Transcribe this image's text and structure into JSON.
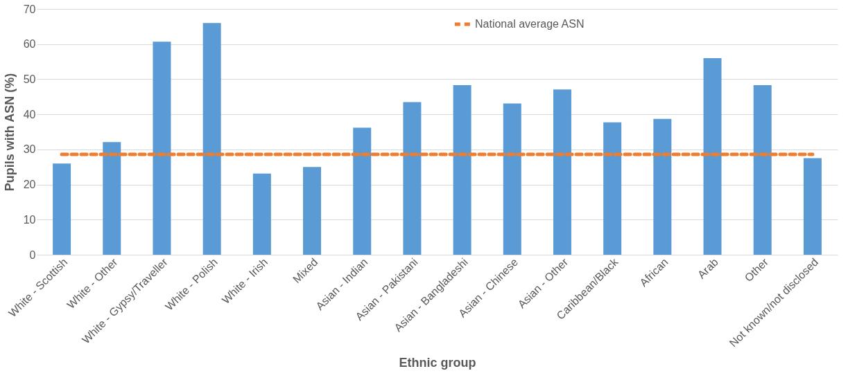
{
  "chart_data": {
    "type": "bar",
    "xlabel": "Ethnic group",
    "ylabel": "Pupils with ASN (%)",
    "categories": [
      "White - Scottish",
      "White - Other",
      "White - Gypsy/Traveller",
      "White - Polish",
      "White - Irish",
      "Mixed",
      "Asian - Indian",
      "Asian - Pakistani",
      "Asian - Bangladeshi",
      "Asian - Chinese",
      "Asian - Other",
      "Caribbean/Black",
      "African",
      "Arab",
      "Other",
      "Not known/not disclosed"
    ],
    "series": [
      {
        "color": "#5b9bd5",
        "values": [
          26,
          32.1,
          60.7,
          66,
          23.1,
          25,
          36.2,
          43.5,
          48.3,
          43.1,
          47.1,
          37.7,
          38.7,
          56,
          48.3,
          27.5
        ]
      },
      {
        "type": "line",
        "name": "National average ASN",
        "color": "#ed7d31",
        "line_style": "dashed",
        "values": [
          28.6,
          28.6,
          28.6,
          28.6,
          28.6,
          28.6,
          28.6,
          28.6,
          28.6,
          28.6,
          28.6,
          28.6,
          28.6,
          28.6,
          28.6,
          28.6
        ]
      }
    ],
    "ylim": [
      0,
      70
    ],
    "yticks": [
      0,
      10,
      20,
      30,
      40,
      50,
      60,
      70
    ],
    "grid": "y",
    "legend": "top right"
  }
}
